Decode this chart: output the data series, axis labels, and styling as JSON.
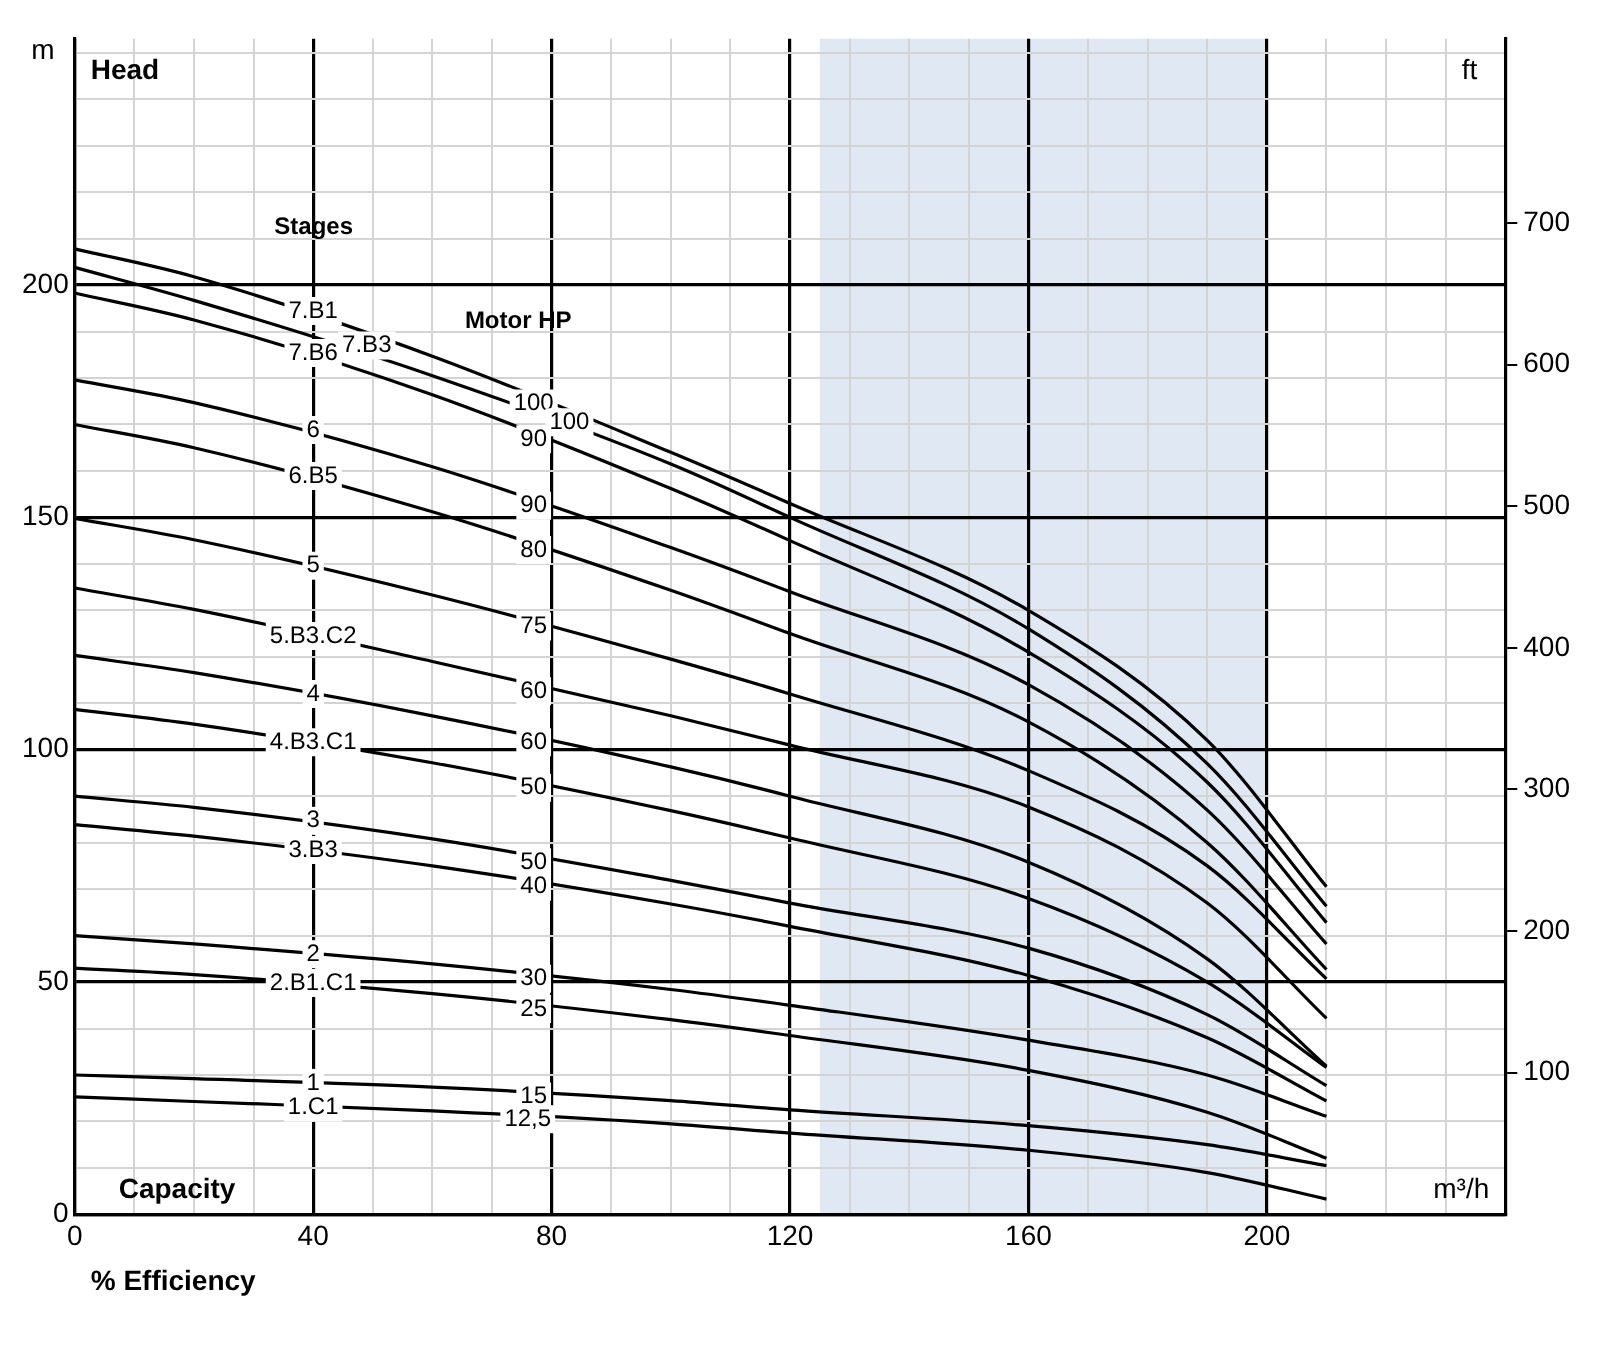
{
  "chart_data": {
    "type": "line",
    "x": [
      0,
      20,
      60,
      100,
      120,
      160,
      190,
      210
    ],
    "series": [
      {
        "color": "#000000",
        "values": [
          207.8,
          201.8,
          184.7,
          164,
          153,
          130,
          102,
          70.5
        ]
      },
      {
        "color": "#000000",
        "values": [
          203.8,
          196.7,
          180.5,
          161.5,
          150,
          126,
          97,
          66.3
        ]
      },
      {
        "color": "#000000",
        "values": [
          198.3,
          192.5,
          176.4,
          156.2,
          145,
          121,
          93,
          62.8
        ]
      },
      {
        "color": "#000000",
        "values": [
          179.6,
          174.7,
          160.9,
          143.5,
          134,
          114,
          87,
          58.2
        ]
      },
      {
        "color": "#000000",
        "values": [
          170,
          165,
          151.2,
          134.3,
          125,
          106,
          80,
          52.7
        ]
      },
      {
        "color": "#000000",
        "values": [
          149.8,
          145.2,
          133.3,
          119.5,
          112,
          95.5,
          75,
          50.7
        ]
      },
      {
        "color": "#000000",
        "values": [
          134.8,
          130.2,
          119,
          107.3,
          101,
          87.7,
          67,
          42.2
        ]
      },
      {
        "color": "#000000",
        "values": [
          120.3,
          116.6,
          107.3,
          96.3,
          90,
          75.8,
          55,
          31.9
        ]
      },
      {
        "color": "#000000",
        "values": [
          108.7,
          105.5,
          97.2,
          86.9,
          81,
          68,
          50,
          31.6
        ]
      },
      {
        "color": "#000000",
        "values": [
          90,
          87.6,
          80.8,
          71.9,
          67,
          57.3,
          43,
          27.7
        ]
      },
      {
        "color": "#000000",
        "values": [
          83.9,
          81.4,
          75,
          66.8,
          62,
          51.4,
          38,
          24.4
        ]
      },
      {
        "color": "#000000",
        "values": [
          60,
          58.2,
          53.9,
          48.4,
          45,
          37.5,
          30,
          21.1
        ]
      },
      {
        "color": "#000000",
        "values": [
          53,
          51.6,
          47.5,
          41.9,
          38.5,
          31,
          22,
          12.1
        ]
      },
      {
        "color": "#000000",
        "values": [
          30,
          29.2,
          27.4,
          24.5,
          22.5,
          19.1,
          15,
          10.5
        ]
      },
      {
        "color": "#000000",
        "values": [
          25.3,
          24.3,
          22.3,
          19.5,
          17.5,
          13.8,
          9,
          3.3
        ]
      }
    ],
    "xlabel": "m³/h",
    "ylabel": "m",
    "y2label": "ft",
    "xlim": [
      0,
      240
    ],
    "ylim": [
      0,
      253
    ],
    "y2lim": [
      0,
      830
    ],
    "xticks": [
      0,
      {
        "value": 10,
        "label": null
      },
      {
        "value": 20,
        "label": null
      },
      {
        "value": 30,
        "label": null
      },
      40,
      {
        "value": 50,
        "label": null
      },
      {
        "value": 60,
        "label": null
      },
      {
        "value": 70,
        "label": null
      },
      80,
      {
        "value": 90,
        "label": null
      },
      {
        "value": 100,
        "label": null
      },
      {
        "value": 110,
        "label": null
      },
      120,
      {
        "value": 130,
        "label": null
      },
      {
        "value": 140,
        "label": null
      },
      {
        "value": 150,
        "label": null
      },
      160,
      {
        "value": 170,
        "label": null
      },
      {
        "value": 180,
        "label": null
      },
      {
        "value": 190,
        "label": null
      },
      200,
      {
        "value": 210,
        "label": null
      },
      {
        "value": 220,
        "label": null
      },
      {
        "value": 230,
        "label": null
      }
    ],
    "yticks": [
      0,
      {
        "value": 10,
        "label": null
      },
      {
        "value": 20,
        "label": null
      },
      {
        "value": 30,
        "label": null
      },
      {
        "value": 40,
        "label": null
      },
      50,
      {
        "value": 60,
        "label": null
      },
      {
        "value": 70,
        "label": null
      },
      {
        "value": 80,
        "label": null
      },
      {
        "value": 90,
        "label": null
      },
      100,
      {
        "value": 110,
        "label": null
      },
      {
        "value": 120,
        "label": null
      },
      {
        "value": 130,
        "label": null
      },
      {
        "value": 140,
        "label": null
      },
      150,
      {
        "value": 160,
        "label": null
      },
      {
        "value": 170,
        "label": null
      },
      {
        "value": 180,
        "label": null
      },
      {
        "value": 190,
        "label": null
      },
      200,
      {
        "value": 210,
        "label": null
      },
      {
        "value": 220,
        "label": null
      },
      {
        "value": 230,
        "label": null
      },
      {
        "value": 240,
        "label": null
      },
      {
        "value": 250,
        "label": null
      }
    ],
    "y2ticks": [
      100,
      200,
      300,
      400,
      500,
      600,
      700
    ],
    "bands": [
      {
        "axis": "x",
        "from": 125,
        "to": 200,
        "color": "#dfe8f3"
      }
    ],
    "grid": true,
    "legend": false,
    "marker": "none",
    "line_style": "solid",
    "annotations": [
      "Head",
      "Capacity",
      "% Efficiency",
      "Stages",
      "Motor HP",
      {
        "text": "7.B1",
        "x": 40,
        "y": 194.4
      },
      {
        "text": "7.B3",
        "x": 49,
        "y": 187
      },
      {
        "text": "7.B6",
        "x": 40,
        "y": 185.4
      },
      {
        "text": "6",
        "x": 40,
        "y": 168.8
      },
      {
        "text": "6.B5",
        "x": 40,
        "y": 158.9
      },
      {
        "text": "5",
        "x": 40,
        "y": 139.6
      },
      {
        "text": "5.B3.C2",
        "x": 40,
        "y": 124.5
      },
      {
        "text": "4",
        "x": 40,
        "y": 112
      },
      {
        "text": "4.B3.C1",
        "x": 40,
        "y": 101.6
      },
      {
        "text": "3",
        "x": 40,
        "y": 84.7
      },
      {
        "text": "3.B3",
        "x": 40,
        "y": 78.4
      },
      {
        "text": "2",
        "x": 40,
        "y": 56
      },
      {
        "text": "2.B1.C1",
        "x": 40,
        "y": 49.8
      },
      {
        "text": "1",
        "x": 40,
        "y": 28.3
      },
      {
        "text": "1.C1",
        "x": 40,
        "y": 23
      },
      {
        "text": "100",
        "x": 77,
        "y": 174.5
      },
      {
        "text": "100",
        "x": 83,
        "y": 170.5
      },
      {
        "text": "90",
        "x": 77,
        "y": 166.8
      },
      {
        "text": "90",
        "x": 77,
        "y": 152.5
      },
      {
        "text": "80",
        "x": 77,
        "y": 143
      },
      {
        "text": "75",
        "x": 77,
        "y": 126.5
      },
      {
        "text": "60",
        "x": 77,
        "y": 112.6
      },
      {
        "text": "60",
        "x": 77,
        "y": 101.6
      },
      {
        "text": "50",
        "x": 77,
        "y": 91.8
      },
      {
        "text": "50",
        "x": 77,
        "y": 75.8
      },
      {
        "text": "40",
        "x": 77,
        "y": 70.5
      },
      {
        "text": "30",
        "x": 77,
        "y": 50.7
      },
      {
        "text": "25",
        "x": 77,
        "y": 44.2
      },
      {
        "text": "15",
        "x": 77,
        "y": 25.4
      },
      {
        "text": "12,5",
        "x": 76,
        "y": 20.5
      }
    ]
  }
}
